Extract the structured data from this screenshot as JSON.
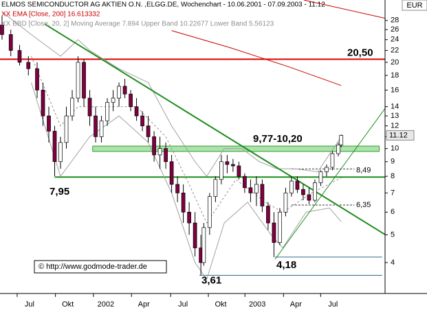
{
  "chart_data": {
    "type": "candlestick",
    "title": "ELMOS SEMICONDUCTOR AG AKTIEN O.N. ,ELGG.DE, Wochenchart - 10.06.2001 - 07.09.2003 - 11.12",
    "indicator_ema": "XX EMA [Close, 200] 16.613332",
    "indicator_bbd": "XX BBD [Close, 20, 2] Moving Average 7.894 Upper Band 10.22677 Lower Band 5.56123",
    "currency": "EUR",
    "copyright": "© http://www.godmode-trader.de",
    "log_y": true,
    "up_color": "#ffffff",
    "down_color": "#800040",
    "xlim": [
      -0.7,
      131
    ],
    "ylim": [
      3.12,
      33
    ],
    "xticks": [
      {
        "value": 9.4,
        "label": "Jul"
      },
      {
        "value": 22.5,
        "label": "Okt"
      },
      {
        "value": 35.5,
        "label": "2002"
      },
      {
        "value": 48.5,
        "label": "Apr"
      },
      {
        "value": 61.9,
        "label": "Jul"
      },
      {
        "value": 74.8,
        "label": "Okt"
      },
      {
        "value": 87.3,
        "label": "2003"
      },
      {
        "value": 100.5,
        "label": "Apr"
      },
      {
        "value": 113.2,
        "label": "Jul"
      }
    ],
    "yticks": [
      4,
      5,
      6,
      7,
      8,
      9,
      10,
      11,
      12,
      13,
      14,
      16,
      18,
      20,
      22,
      24,
      26,
      28
    ],
    "x": [
      0,
      3,
      6,
      9,
      12,
      14,
      16,
      18,
      20,
      22,
      24,
      26,
      28,
      30,
      32,
      34,
      36,
      38,
      40,
      42,
      44,
      46,
      48,
      50,
      52,
      54,
      56,
      58,
      60,
      62,
      64,
      66,
      68,
      69,
      71,
      73,
      75,
      77,
      79,
      81,
      83,
      85,
      87,
      89,
      91,
      93,
      95,
      97,
      99,
      101,
      103,
      105,
      107,
      109,
      111,
      113,
      115,
      116
    ],
    "open": [
      27,
      25,
      22,
      20,
      19,
      16,
      13,
      11.5,
      9,
      10.5,
      13,
      15,
      20,
      15,
      13,
      11,
      12.5,
      14.5,
      15,
      16.5,
      15.5,
      14,
      13,
      12,
      11,
      9.5,
      10,
      9,
      7.5,
      7,
      6,
      5.5,
      4.5,
      4,
      5.3,
      6.8,
      7.8,
      9,
      8.8,
      8.7,
      8,
      7.3,
      7,
      7.5,
      6.3,
      5.5,
      4.7,
      6,
      7,
      7.7,
      7.2,
      6.9,
      6.6,
      7.6,
      8.3,
      8.6,
      9.6,
      10.3
    ],
    "high": [
      29,
      26,
      23,
      21,
      20,
      17,
      14,
      12,
      11,
      14,
      16,
      21,
      20.5,
      16,
      14,
      13,
      15,
      16,
      17,
      17.5,
      16,
      15,
      13.5,
      13,
      11.5,
      11,
      10.5,
      9.5,
      8,
      7.5,
      6.5,
      6,
      5,
      5.5,
      7,
      8,
      9.5,
      9.5,
      9.2,
      9,
      8.2,
      7.8,
      8,
      7.8,
      6.5,
      6,
      6.2,
      7.3,
      8,
      8,
      7.5,
      7.3,
      7.8,
      8.4,
      8.8,
      9.8,
      10.5,
      11.2
    ],
    "low": [
      24,
      21,
      19.5,
      18,
      15,
      12,
      10.5,
      8,
      8.5,
      10,
      12.5,
      14.5,
      14,
      12,
      10.5,
      10.5,
      12,
      13.5,
      14,
      15,
      13.5,
      12.5,
      11.5,
      10.5,
      9,
      8.5,
      8.5,
      7,
      6.5,
      5.5,
      5,
      4.2,
      3.61,
      3.9,
      5,
      6.5,
      7.5,
      8.2,
      8.3,
      7.8,
      7,
      6.5,
      6.3,
      6,
      5.2,
      4.18,
      4.6,
      5.8,
      6.8,
      7,
      6.6,
      6.4,
      6.5,
      7.4,
      8,
      8.4,
      9.4,
      10.1
    ],
    "close": [
      25,
      22,
      20,
      19,
      16,
      13,
      11.5,
      9,
      10.5,
      13,
      15,
      20,
      15,
      13,
      11,
      12.5,
      14.5,
      15,
      16.5,
      15.5,
      14,
      13,
      12,
      11,
      9.5,
      10,
      9,
      7.5,
      7,
      6,
      5.5,
      4.5,
      4,
      5.3,
      6.8,
      7.8,
      9,
      8.8,
      8.7,
      8,
      7.3,
      7,
      7.5,
      6.3,
      5.5,
      4.7,
      6,
      7,
      7.7,
      7.2,
      6.9,
      6.6,
      7.6,
      8.3,
      8.6,
      9.6,
      10.3,
      11.12
    ],
    "last_price": 11.12,
    "lines": [
      {
        "color": "#cc0000",
        "width": 1,
        "x": [
          58,
          78,
          98,
          116
        ],
        "values": [
          25.8,
          22.5,
          19.3,
          16.6
        ]
      },
      {
        "color": "#cc0000",
        "width": 1,
        "x": [
          103.2,
          131
        ],
        "values": [
          33,
          28.5
        ]
      },
      {
        "color": "#a0a0a0",
        "width": 1,
        "x": [
          0,
          10,
          20,
          26,
          30,
          40,
          50,
          58,
          66,
          70,
          76,
          82,
          88,
          94,
          100,
          108,
          116
        ],
        "values": [
          30,
          25,
          21,
          24,
          22,
          19,
          17,
          12,
          9,
          8,
          10,
          10,
          9,
          8.5,
          8.5,
          8.3,
          11
        ]
      },
      {
        "color": "#a0a0a0",
        "width": 1,
        "x": [
          10,
          20,
          30,
          40,
          50,
          58,
          66,
          70,
          76,
          84,
          92,
          96,
          104,
          112,
          116
        ],
        "values": [
          17,
          8,
          11,
          13,
          10.5,
          7,
          4,
          3.5,
          5.5,
          6.5,
          5,
          4.5,
          6,
          6.2,
          5.56
        ]
      },
      {
        "color": "#909090",
        "width": 1,
        "dash": true,
        "x": [
          10,
          20,
          26,
          36,
          46,
          56,
          64,
          70,
          80,
          90,
          96,
          106,
          116
        ],
        "values": [
          21,
          12,
          14,
          14,
          14,
          11,
          7.5,
          5.5,
          7.8,
          6.5,
          6,
          7,
          7.9
        ]
      },
      {
        "color": "#1a8c1a",
        "width": 2,
        "x": [
          14.6,
          131
        ],
        "values": [
          27.2,
          5.01
        ]
      },
      {
        "color": "#1a8c1a",
        "width": 1,
        "x": [
          93.4,
          131
        ],
        "values": [
          4.11,
          13.8
        ]
      }
    ],
    "band": {
      "from": 9.77,
      "to": 10.2,
      "label": "9,77-10,20",
      "color": "#66cc66",
      "x": [
        31,
        129
      ]
    },
    "levels": [
      {
        "value": 20.5,
        "label": "20,50",
        "color": "#dd0000",
        "x": [
          -0.7,
          131
        ]
      },
      {
        "value": 7.95,
        "label": "7,95",
        "color": "#1a8c1a",
        "x": [
          18,
          131
        ]
      },
      {
        "value": 3.61,
        "label": "3,61",
        "color": "#2e6e8e",
        "x": [
          67.5,
          130
        ]
      },
      {
        "value": 4.18,
        "label": "4,18",
        "color": "#2e6e8e",
        "x": [
          93.4,
          130
        ]
      },
      {
        "value": 8.49,
        "label": "8,49",
        "color": "#333333",
        "dash": true,
        "x": [
          99,
          120.5
        ]
      },
      {
        "value": 6.35,
        "label": "6,35",
        "color": "#333333",
        "dash": true,
        "x": [
          99,
          120.5
        ]
      }
    ]
  }
}
